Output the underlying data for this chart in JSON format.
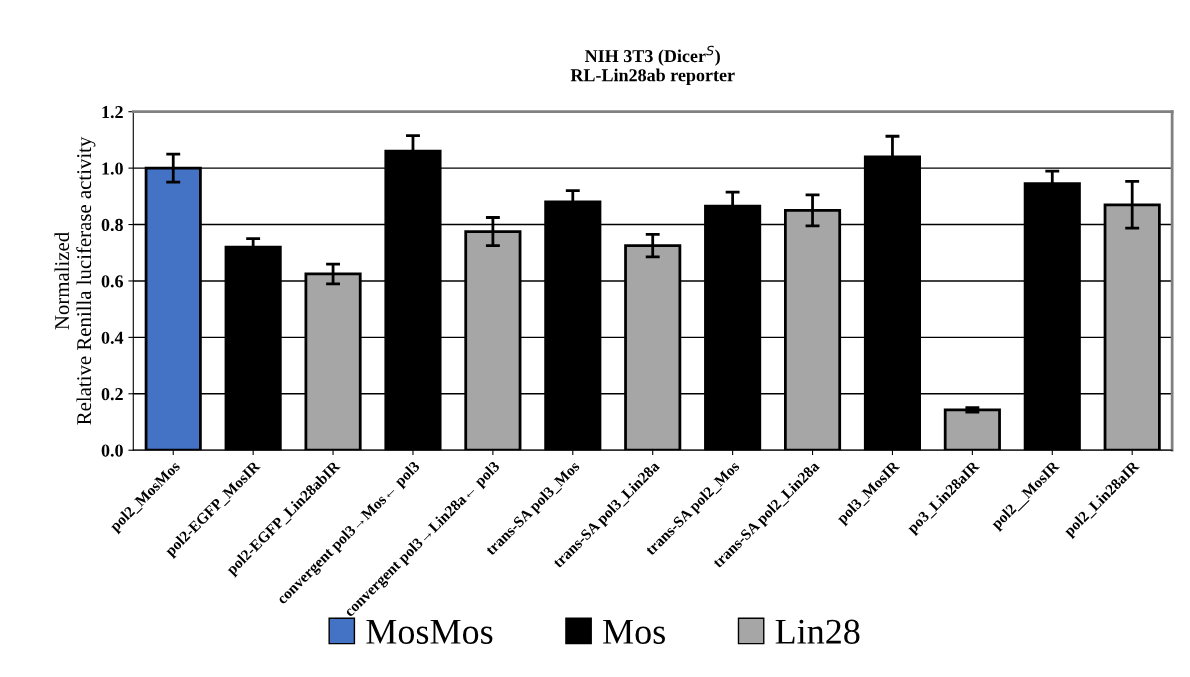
{
  "chart_data": {
    "type": "bar",
    "title": "NIH 3T3 (Dicer$^{S}$)\nRL-Lin28ab reporter",
    "ylabel": "Normalized\nRelative Renilla luciferase activity",
    "categories": [
      "pol2_MosMos",
      "pol2-EGFP_MosIR",
      "pol2-EGFP_Lin28abIR",
      "convergent pol3→Mos← pol3",
      "convergent pol3→Lin28a← pol3",
      "trans-SA pol3_Mos",
      "trans-SA pol3_Lin28a",
      "trans-SA pol2_Mos",
      "trans-SA pol2_Lin28a",
      "pol3_MosIR",
      "po3_Lin28aIR",
      "pol2__MosIR",
      "pol2_Lin28aIR"
    ],
    "series": [
      {
        "name": "MosMos",
        "color": "#4472c4",
        "values": [
          1.0,
          null,
          null,
          null,
          null,
          null,
          null,
          null,
          null,
          null,
          null,
          null,
          null
        ],
        "errors": [
          0.05,
          null,
          null,
          null,
          null,
          null,
          null,
          null,
          null,
          null,
          null,
          null,
          null
        ]
      },
      {
        "name": "Mos",
        "color": "#000000",
        "values": [
          null,
          0.72,
          null,
          1.06,
          null,
          0.88,
          null,
          0.865,
          null,
          1.04,
          null,
          0.945,
          null
        ],
        "errors": [
          null,
          0.03,
          null,
          0.055,
          null,
          0.04,
          null,
          0.05,
          null,
          0.073,
          null,
          0.044,
          null
        ]
      },
      {
        "name": "Lin28",
        "color": "#a6a6a6",
        "values": [
          null,
          null,
          0.625,
          null,
          0.775,
          null,
          0.725,
          null,
          0.85,
          null,
          0.143,
          null,
          0.87
        ],
        "errors": [
          null,
          null,
          0.035,
          null,
          0.05,
          null,
          0.04,
          null,
          0.055,
          null,
          0.008,
          null,
          0.083
        ]
      }
    ],
    "ylim": [
      0,
      1.2
    ],
    "yticks": [
      {
        "value": 0,
        "label": "0.0"
      },
      {
        "value": 0.2,
        "label": "0.2"
      },
      {
        "value": 0.4,
        "label": "0.4"
      },
      {
        "value": 0.6,
        "label": "0.6"
      },
      {
        "value": 0.8,
        "label": "0.8"
      },
      {
        "value": 1.0,
        "label": "1.0"
      },
      {
        "value": 1.2,
        "label": "1.2"
      }
    ],
    "grid": "y",
    "legend": "bottom"
  }
}
